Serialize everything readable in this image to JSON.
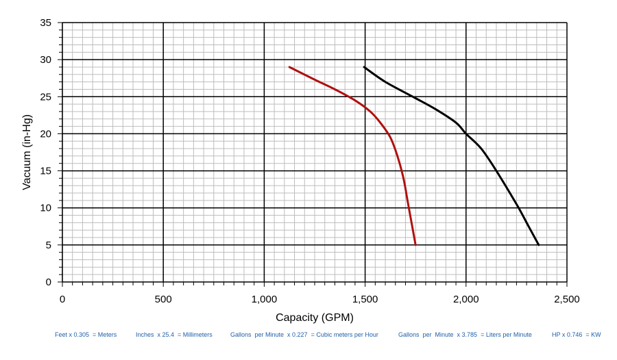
{
  "chart_data": {
    "type": "line",
    "xlabel": "Capacity (GPM)",
    "ylabel": "Vacuum (in-Hg)",
    "xlim": [
      0,
      2500
    ],
    "ylim": [
      0,
      35
    ],
    "x_ticks": [
      0,
      500,
      1000,
      1500,
      2000,
      2500
    ],
    "x_tick_labels": [
      "0",
      "500",
      "1,000",
      "1,500",
      "2,000",
      "2,500"
    ],
    "y_ticks": [
      0,
      5,
      10,
      15,
      20,
      25,
      30,
      35
    ],
    "y_tick_labels": [
      "0",
      "5",
      "10",
      "15",
      "20",
      "25",
      "30",
      "35"
    ],
    "grid": true,
    "series": [
      {
        "color": "#b01010",
        "points": [
          [
            1125,
            29
          ],
          [
            1250,
            27.3
          ],
          [
            1350,
            26
          ],
          [
            1450,
            24.5
          ],
          [
            1525,
            23
          ],
          [
            1575,
            21.5
          ],
          [
            1625,
            19.5
          ],
          [
            1660,
            17
          ],
          [
            1690,
            14
          ],
          [
            1710,
            11
          ],
          [
            1730,
            8
          ],
          [
            1750,
            5
          ]
        ]
      },
      {
        "color": "#000000",
        "points": [
          [
            1495,
            29
          ],
          [
            1600,
            27
          ],
          [
            1750,
            24.8
          ],
          [
            1850,
            23.3
          ],
          [
            1950,
            21.5
          ],
          [
            2000,
            20
          ],
          [
            2075,
            18
          ],
          [
            2150,
            15
          ],
          [
            2250,
            10.5
          ],
          [
            2310,
            7.5
          ],
          [
            2360,
            5
          ]
        ]
      }
    ]
  },
  "footer": {
    "conversions": [
      "Feet x 0.305  = Meters",
      "Inches  x 25.4  = Millimeters",
      "Gallons  per Minute  x 0.227  = Cubic meters per Hour",
      "Gallons  per  Minute  x 3.785  = Liters per Minute",
      "HP x 0.746  = KW"
    ]
  }
}
